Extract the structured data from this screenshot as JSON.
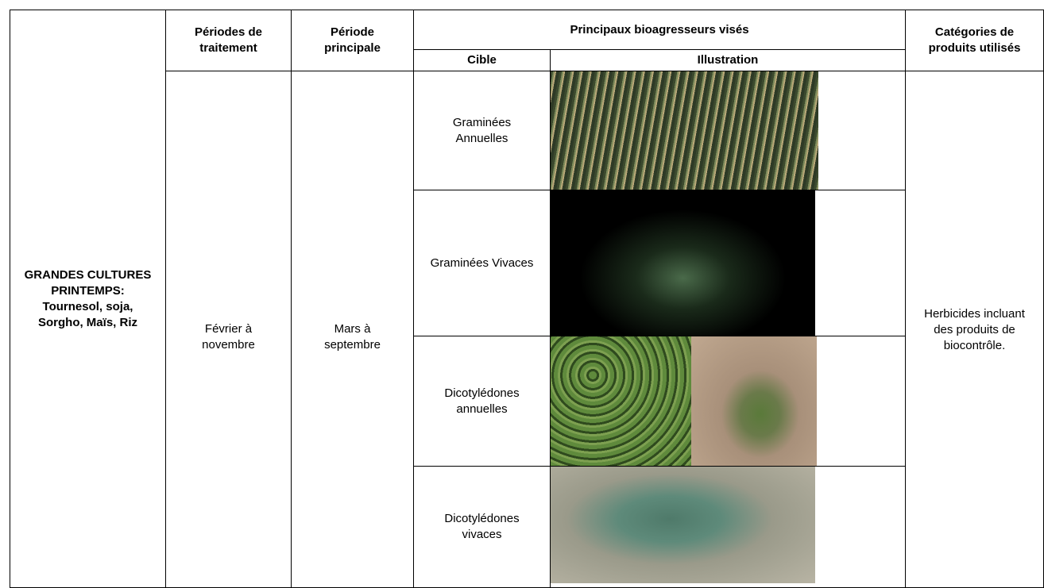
{
  "table": {
    "headers": {
      "periods": [
        "Périodes de",
        "traitement"
      ],
      "main_period": [
        "Période",
        "principale"
      ],
      "pests": [
        "Principaux bioagresseurs visés"
      ],
      "target": [
        "Cible"
      ],
      "illustration": [
        "Illustration"
      ],
      "products": [
        "Catégories de",
        "produits utilisés"
      ]
    },
    "row": {
      "crop": [
        "GRANDES CULTURES",
        "PRINTEMPS:",
        "Tournesol, soja,",
        "Sorgho, Maïs, Riz"
      ],
      "periods": [
        "Février à",
        "novembre"
      ],
      "main_period": [
        "Mars à",
        "septembre"
      ],
      "targets": [
        [
          "Graminées",
          "Annuelles"
        ],
        [
          "Graminées Vivaces"
        ],
        [
          "Dicotylédones",
          "annuelles"
        ],
        [
          "Dicotylédones",
          "vivaces"
        ]
      ],
      "products": [
        "Herbicides incluant",
        "des produits de",
        "biocontrôle."
      ]
    }
  }
}
